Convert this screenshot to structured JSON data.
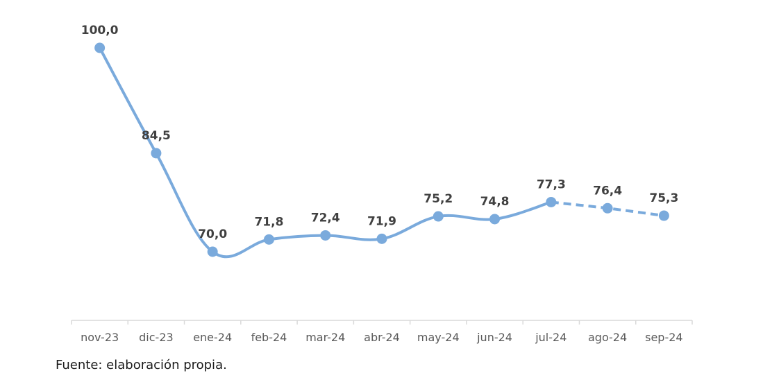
{
  "chart_data": {
    "type": "line",
    "categories": [
      "nov-23",
      "dic-23",
      "ene-24",
      "feb-24",
      "mar-24",
      "abr-24",
      "may-24",
      "jun-24",
      "jul-24",
      "ago-24",
      "sep-24"
    ],
    "values": [
      100.0,
      84.5,
      70.0,
      71.8,
      72.4,
      71.9,
      75.2,
      74.8,
      77.3,
      76.4,
      75.3
    ],
    "value_labels": [
      "100,0",
      "84,5",
      "70,0",
      "71,8",
      "72,4",
      "71,9",
      "75,2",
      "74,8",
      "77,3",
      "76,4",
      "75,3"
    ],
    "projected_from_index": 8,
    "title": "",
    "xlabel": "",
    "ylabel": "",
    "ylim": [
      60,
      105
    ],
    "grid": false,
    "line_color": "#7AAADC",
    "label_color": "#404040"
  },
  "source_note": "Fuente: elaboración propia."
}
